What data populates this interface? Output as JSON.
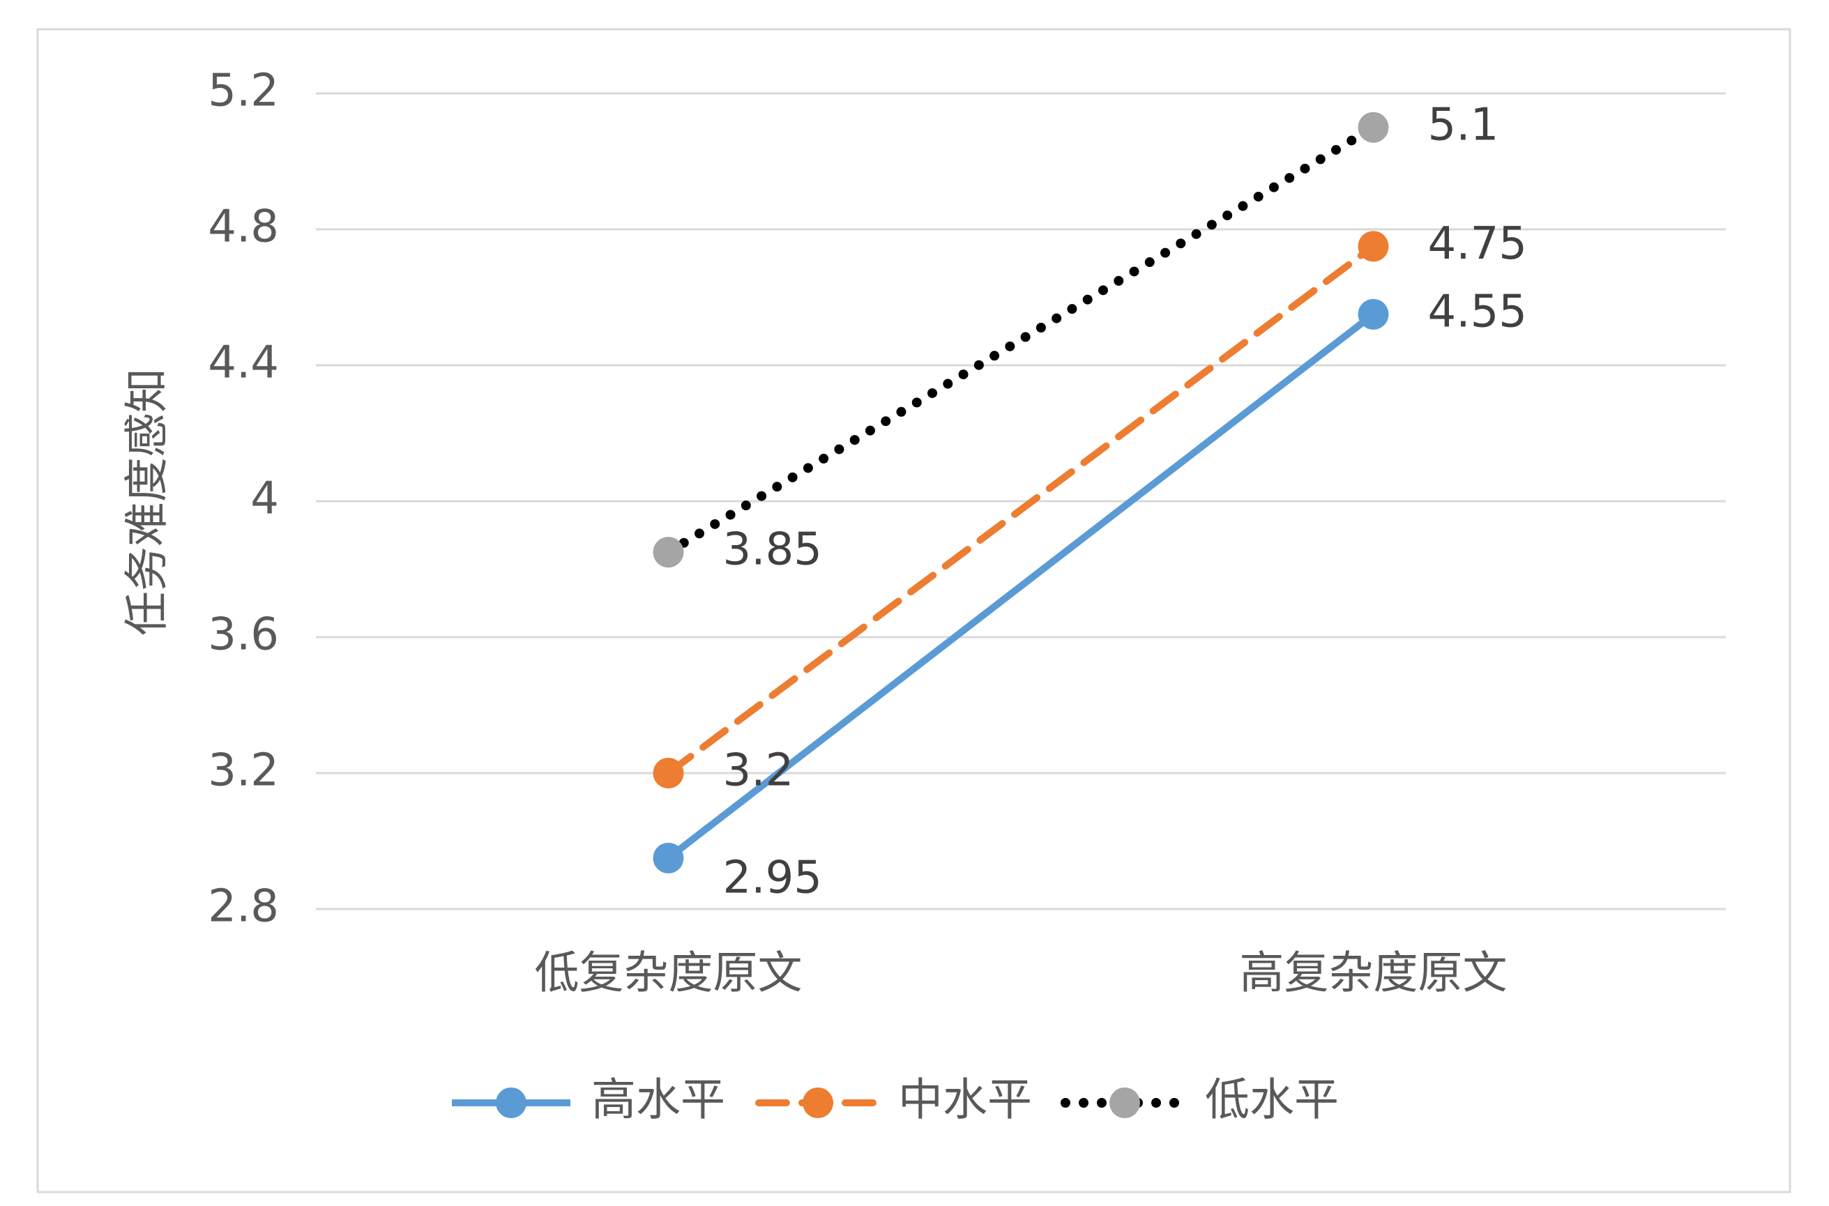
{
  "chart_data": {
    "type": "line",
    "y_label": "任务难度感知",
    "categories": [
      "低复杂度原文",
      "高复杂度原文"
    ],
    "series": [
      {
        "name": "高水平",
        "color": "#5b9bd5",
        "line_color": "#5b9bd5",
        "dash": "solid",
        "values": [
          2.95,
          4.55
        ]
      },
      {
        "name": "中水平",
        "color": "#ed7d31",
        "line_color": "#ed7d31",
        "dash": "dashed",
        "values": [
          3.2,
          4.75
        ]
      },
      {
        "name": "低水平",
        "color": "#a5a5a5",
        "line_color": "#000000",
        "dash": "dotted",
        "values": [
          3.85,
          5.1
        ]
      }
    ],
    "ylim": [
      2.8,
      5.2
    ],
    "yticks": [
      2.8,
      3.2,
      3.6,
      4,
      4.4,
      4.8,
      5.2
    ],
    "grid": true,
    "legend": "bottom"
  }
}
